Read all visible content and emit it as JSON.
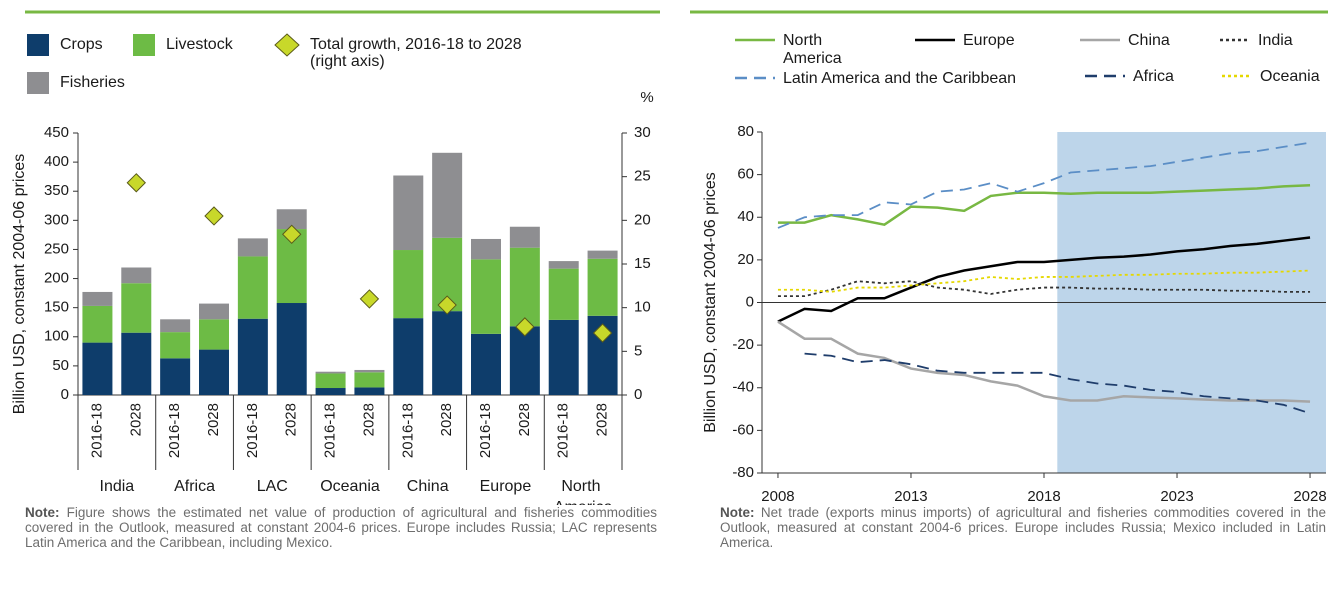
{
  "chart_data": [
    {
      "type": "stacked_bar",
      "legend": {
        "growth": "Total growth, 2016-18 to 2028 (right axis)"
      },
      "y_label": "Billion USD, constant 2004-06 prices",
      "y2_label": "%",
      "groups": [
        "India",
        "Africa",
        "LAC",
        "Oceania",
        "China",
        "Europe",
        "North America"
      ],
      "categories": [
        "2016-18",
        "2028",
        "2016-18",
        "2028",
        "2016-18",
        "2028",
        "2016-18",
        "2028",
        "2016-18",
        "2028",
        "2016-18",
        "2028",
        "2016-18",
        "2028"
      ],
      "series": [
        {
          "name": "Crops",
          "color": "#0e3d6b",
          "values": [
            90,
            107,
            63,
            78,
            131,
            158,
            12,
            13,
            132,
            144,
            105,
            118,
            129,
            136
          ]
        },
        {
          "name": "Livestock",
          "color": "#6dbb45",
          "values": [
            63,
            85,
            45,
            52,
            107,
            127,
            25,
            26,
            117,
            126,
            128,
            135,
            88,
            98
          ]
        },
        {
          "name": "Fisheries",
          "color": "#8e8e91",
          "values": [
            24,
            27,
            22,
            27,
            31,
            34,
            3,
            4,
            128,
            146,
            35,
            36,
            13,
            14
          ]
        },
        {
          "name": "Total growth, 2016-18 to 2028 (right axis)",
          "color": "#c8d82a",
          "axis": "y2",
          "values": [
            null,
            24.3,
            null,
            20.5,
            null,
            18.4,
            null,
            11,
            null,
            10.3,
            null,
            7.8,
            null,
            7.1
          ]
        }
      ],
      "ylim": [
        0,
        450
      ],
      "yticks": [
        0,
        50,
        100,
        150,
        200,
        250,
        300,
        350,
        400,
        450
      ],
      "y2lim": [
        0,
        30
      ],
      "y2ticks": [
        0,
        5,
        10,
        15,
        20,
        25,
        30
      ],
      "note": {
        "label": "Note:",
        "text": "Figure shows the estimated net value of production of agricultural and fisheries commodities covered in the Outlook, measured at constant 2004-6 prices. Europe includes Russia; LAC represents Latin America and the Caribbean, including Mexico."
      }
    },
    {
      "type": "line",
      "y_label": "Billion USD, constant 2004-06 prices",
      "x": [
        2008,
        2009,
        2010,
        2011,
        2012,
        2013,
        2014,
        2015,
        2016,
        2017,
        2018,
        2019,
        2020,
        2021,
        2022,
        2023,
        2024,
        2025,
        2026,
        2027,
        2028
      ],
      "series": [
        {
          "name": "North America",
          "color": "#78b843",
          "dash": "solid",
          "values": [
            37.5,
            37.5,
            41,
            39,
            36.5,
            45,
            44.5,
            43,
            50,
            51.5,
            51.5,
            51,
            51.5,
            51.5,
            51.5,
            52,
            52.5,
            53,
            53.5,
            54.5,
            55
          ]
        },
        {
          "name": "Europe",
          "color": "#000000",
          "dash": "solid",
          "values": [
            -9,
            -3,
            -4,
            2,
            2,
            7,
            12,
            15,
            17,
            19,
            19,
            20,
            21,
            21.5,
            22.5,
            24,
            25,
            26.5,
            27.5,
            29,
            30.5
          ]
        },
        {
          "name": "China",
          "color": "#a6a6a6",
          "dash": "solid",
          "values": [
            -9,
            -17,
            -17,
            -24,
            -26,
            -31,
            -33,
            -34,
            -37,
            -39,
            -44,
            -46,
            -46,
            -44,
            -44.5,
            -45,
            -45.5,
            -46,
            -46,
            -46,
            -46.5
          ]
        },
        {
          "name": "India",
          "color": "#333333",
          "dash": "dotted",
          "values": [
            3,
            3,
            6,
            10,
            9,
            10,
            7,
            6,
            4,
            6,
            7,
            7,
            6.5,
            6.5,
            6,
            6,
            6,
            5.5,
            5.5,
            5,
            5
          ]
        },
        {
          "name": "Latin America and the Caribbean",
          "color": "#5b8ec6",
          "dash": "dashed",
          "values": [
            35,
            40,
            41,
            41,
            47,
            46,
            52,
            53,
            56,
            52,
            56,
            61,
            62,
            63,
            64,
            66,
            68,
            70,
            71,
            73,
            75
          ]
        },
        {
          "name": "Africa",
          "color": "#1f3d6b",
          "dash": "dashed",
          "values": [
            null,
            -24,
            -25,
            -28,
            -27,
            -29,
            -32,
            -33,
            -33,
            -33,
            -33,
            -36,
            -38,
            -39,
            -41,
            -42,
            -44,
            -45,
            -46,
            -48,
            -52
          ]
        },
        {
          "name": "Oceania",
          "color": "#e5d800",
          "dash": "dotted",
          "values": [
            6,
            6,
            5,
            7,
            7,
            8,
            9,
            10,
            12,
            11,
            12,
            12,
            12.5,
            13,
            13,
            13.5,
            13.5,
            14,
            14,
            14.5,
            15
          ]
        }
      ],
      "xlim": [
        2007.4,
        2028.6
      ],
      "xticks": [
        2008,
        2013,
        2018,
        2023,
        2028
      ],
      "ylim": [
        -80,
        80
      ],
      "yticks": [
        -80,
        -60,
        -40,
        -20,
        0,
        20,
        40,
        60,
        80
      ],
      "shaded_xrange": [
        2018.5,
        2028.6
      ],
      "shade_color": "#bdd5ea",
      "note": {
        "label": "Note:",
        "text": "Net trade (exports minus imports) of agricultural and fisheries commodities covered in the Outlook, measured at constant 2004-6 prices. Europe includes Russia; Mexico included in Latin America."
      }
    }
  ]
}
